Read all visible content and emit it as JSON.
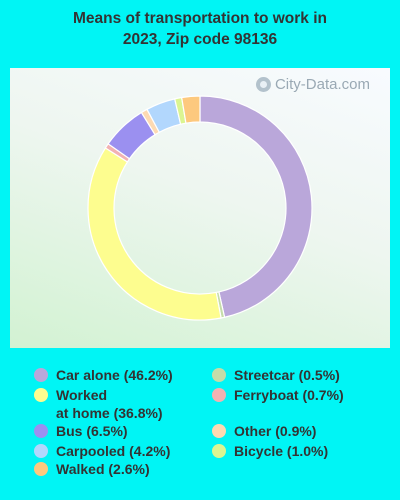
{
  "title_lines": [
    "Means of transportation to work in",
    "2023, Zip code 98136"
  ],
  "watermark": "City-Data.com",
  "chart_data": {
    "type": "pie",
    "donut": true,
    "title": "Means of transportation to work in 2023, Zip code 98136",
    "categories": [
      "Car alone",
      "Worked at home",
      "Bus",
      "Carpooled",
      "Walked",
      "Streetcar",
      "Ferryboat",
      "Other",
      "Bicycle"
    ],
    "values": [
      46.2,
      36.8,
      6.5,
      4.2,
      2.6,
      0.5,
      0.7,
      0.9,
      1.0
    ],
    "legend_labels": [
      "Car alone (46.2%)",
      "Worked\nat home (36.8%)",
      "Bus (6.5%)",
      "Carpooled (4.2%)",
      "Walked (2.6%)",
      "Streetcar (0.5%)",
      "Ferryboat (0.7%)",
      "Other (0.9%)",
      "Bicycle (1.0%)"
    ],
    "colors": [
      "#baa7da",
      "#fdfd8f",
      "#9b90f0",
      "#b2d7fd",
      "#fdc97e",
      "#c5dca9",
      "#f2b2b2",
      "#fddab2",
      "#dbf592"
    ],
    "slice_order_clockwise_from_top": [
      "Car alone",
      "Streetcar",
      "Worked at home",
      "Ferryboat",
      "Bus",
      "Other",
      "Carpooled",
      "Bicycle",
      "Walked"
    ],
    "legend_placement": "bottom"
  }
}
